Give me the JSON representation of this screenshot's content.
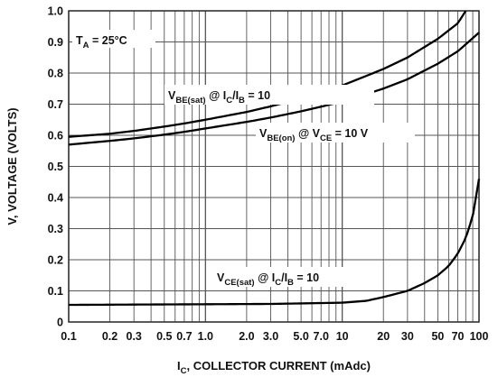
{
  "chart_data": {
    "type": "line",
    "x_scale": "log",
    "xlim": [
      0.1,
      100
    ],
    "ylim": [
      0,
      1.0
    ],
    "grid": true,
    "xlabel": "I_C, COLLECTOR CURRENT (mAdc)",
    "ylabel": "V, VOLTAGE (VOLTS)",
    "x_tick_labels": [
      "0.1",
      "0.2",
      "0.3",
      "0.5",
      "0.7",
      "1.0",
      "2.0",
      "3.0",
      "5.0",
      "7.0",
      "10",
      "20",
      "30",
      "50",
      "70",
      "100"
    ],
    "y_tick_labels": [
      "0",
      "0.1",
      "0.2",
      "0.3",
      "0.4",
      "0.5",
      "0.6",
      "0.7",
      "0.8",
      "0.9",
      "1.0"
    ],
    "annotation": "T_A = 25°C",
    "series": [
      {
        "name": "V_BE(sat) @ I_C/I_B = 10",
        "x": [
          0.1,
          0.2,
          0.3,
          0.5,
          0.7,
          1.0,
          2.0,
          3.0,
          5.0,
          7.0,
          10,
          20,
          30,
          50,
          70,
          80
        ],
        "y": [
          0.595,
          0.605,
          0.614,
          0.628,
          0.638,
          0.65,
          0.675,
          0.693,
          0.718,
          0.737,
          0.76,
          0.813,
          0.85,
          0.91,
          0.96,
          1.0
        ]
      },
      {
        "name": "V_BE(on) @ V_CE = 10 V",
        "x": [
          0.1,
          0.2,
          0.3,
          0.5,
          0.7,
          1.0,
          2.0,
          3.0,
          5.0,
          7.0,
          10,
          20,
          30,
          50,
          70,
          100
        ],
        "y": [
          0.57,
          0.582,
          0.59,
          0.602,
          0.611,
          0.622,
          0.643,
          0.657,
          0.677,
          0.692,
          0.708,
          0.75,
          0.78,
          0.83,
          0.87,
          0.93
        ]
      },
      {
        "name": "V_CE(sat) @ I_C/I_B = 10",
        "x": [
          0.1,
          0.3,
          1.0,
          3.0,
          10,
          15,
          20,
          30,
          40,
          50,
          60,
          70,
          80,
          90,
          100
        ],
        "y": [
          0.055,
          0.056,
          0.057,
          0.058,
          0.062,
          0.068,
          0.08,
          0.1,
          0.125,
          0.15,
          0.18,
          0.22,
          0.27,
          0.34,
          0.46
        ]
      }
    ]
  }
}
